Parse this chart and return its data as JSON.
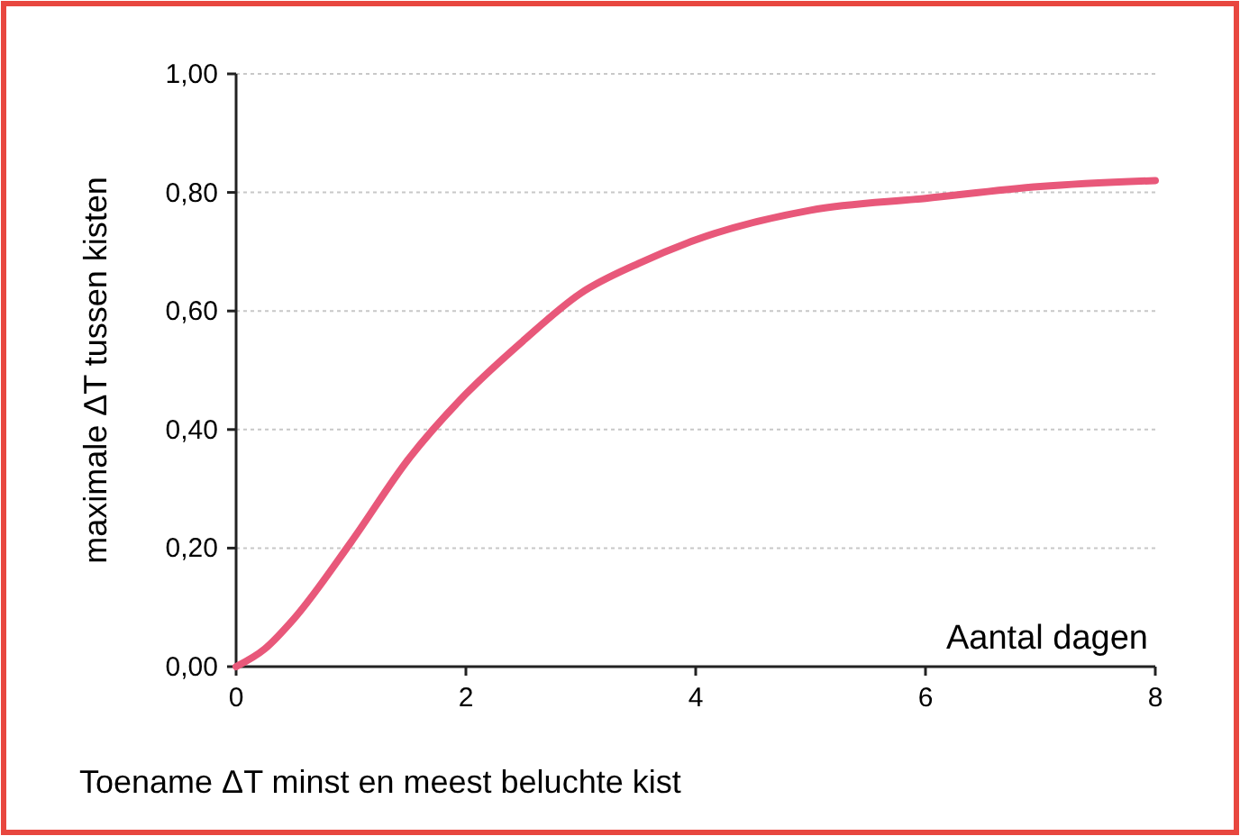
{
  "chart_data": {
    "type": "line",
    "xlabel": "Aantal dagen",
    "ylabel": "maximale ΔT tussen kisten",
    "annotations": [
      "Toename ΔT minst en meest beluchte kist"
    ],
    "x": [
      0,
      0.25,
      0.5,
      1,
      1.5,
      2,
      2.5,
      3,
      3.5,
      4,
      5,
      6,
      7,
      8
    ],
    "series": [
      {
        "color": "#e8587a",
        "values": [
          0,
          0.03,
          0.08,
          0.21,
          0.35,
          0.46,
          0.55,
          0.63,
          0.68,
          0.72,
          0.77,
          0.79,
          0.81,
          0.82
        ]
      }
    ],
    "xlim": [
      0,
      8
    ],
    "xticks": [
      0,
      2,
      4,
      6,
      8
    ],
    "ylim": [
      0,
      1
    ],
    "yticks": [
      {
        "value": 0,
        "label": "0,00"
      },
      {
        "value": 0.2,
        "label": "0,20"
      },
      {
        "value": 0.4,
        "label": "0,40"
      },
      {
        "value": 0.6,
        "label": "0,60"
      },
      {
        "value": 0.8,
        "label": "0,80"
      },
      {
        "value": 1,
        "label": "1,00"
      }
    ],
    "grid": "y",
    "marker": "none",
    "line_style": "solid"
  }
}
